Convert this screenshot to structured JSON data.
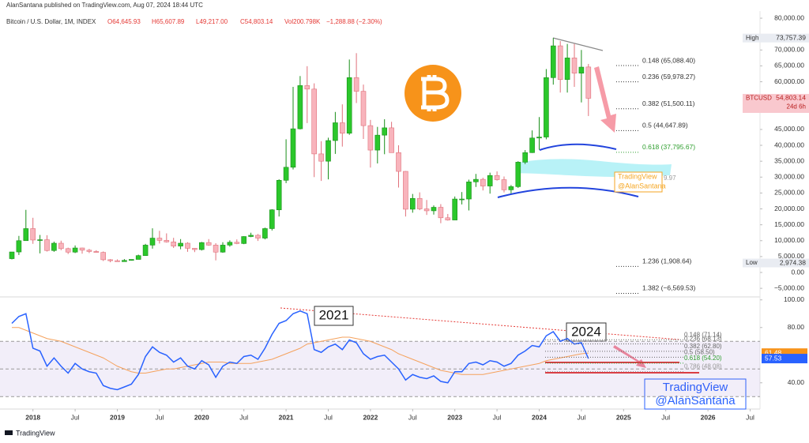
{
  "header": {
    "publisher": "AlanSantana published on TradingView.com, Aug 07, 2024 18:44 UTC",
    "footer": "TradingView"
  },
  "chart_data": [
    {
      "type": "candlestick",
      "title": "Bitcoin / U.S. Dollar, 1M, INDEX",
      "ohlc_legend": [
        "O64,645.93",
        "H65,607.89",
        "L49,217.00",
        "C54,803.14"
      ],
      "volume_label": "Vol200.798K",
      "change_label": "−1,288.88 (−2.30%)",
      "x": [
        "2017-10",
        "2017-11",
        "2017-12",
        "2018-01",
        "2018-02",
        "2018-03",
        "2018-04",
        "2018-05",
        "2018-06",
        "2018-07",
        "2018-08",
        "2018-09",
        "2018-10",
        "2018-11",
        "2018-12",
        "2019-01",
        "2019-02",
        "2019-03",
        "2019-04",
        "2019-05",
        "2019-06",
        "2019-07",
        "2019-08",
        "2019-09",
        "2019-10",
        "2019-11",
        "2019-12",
        "2020-01",
        "2020-02",
        "2020-03",
        "2020-04",
        "2020-05",
        "2020-06",
        "2020-07",
        "2020-08",
        "2020-09",
        "2020-10",
        "2020-11",
        "2020-12",
        "2021-01",
        "2021-02",
        "2021-03",
        "2021-04",
        "2021-05",
        "2021-06",
        "2021-07",
        "2021-08",
        "2021-09",
        "2021-10",
        "2021-11",
        "2021-12",
        "2022-01",
        "2022-02",
        "2022-03",
        "2022-04",
        "2022-05",
        "2022-06",
        "2022-07",
        "2022-08",
        "2022-09",
        "2022-10",
        "2022-11",
        "2022-12",
        "2023-01",
        "2023-02",
        "2023-03",
        "2023-04",
        "2023-05",
        "2023-06",
        "2023-07",
        "2023-08",
        "2023-09",
        "2023-10",
        "2023-11",
        "2023-12",
        "2024-01",
        "2024-02",
        "2024-03",
        "2024-04",
        "2024-05",
        "2024-06",
        "2024-07",
        "2024-08"
      ],
      "open": [
        4340,
        6450,
        10000,
        13800,
        10200,
        10300,
        6900,
        9200,
        7500,
        6400,
        7700,
        7000,
        6600,
        6300,
        4000,
        3700,
        3400,
        3800,
        4100,
        5300,
        8600,
        10800,
        10100,
        9600,
        8300,
        9200,
        7600,
        7200,
        9400,
        8600,
        6400,
        8600,
        9500,
        9100,
        11300,
        11700,
        10800,
        13800,
        19700,
        29000,
        33100,
        45200,
        58800,
        57700,
        37300,
        35000,
        41500,
        47100,
        43800,
        61300,
        57000,
        46200,
        38500,
        43200,
        45500,
        37700,
        31800,
        19900,
        23300,
        20000,
        19400,
        20500,
        17200,
        16500,
        23100,
        23100,
        28500,
        29300,
        27200,
        30500,
        29200,
        26000,
        27000,
        34700,
        37700,
        42300,
        42600,
        61300,
        71300,
        60700,
        67500,
        62700,
        64645.93
      ],
      "high": [
        6470,
        11500,
        19700,
        17200,
        11800,
        11700,
        9700,
        10000,
        7800,
        8500,
        7800,
        7400,
        7000,
        6600,
        4200,
        4100,
        4200,
        4100,
        5600,
        9000,
        13900,
        13100,
        12300,
        10900,
        10500,
        9500,
        7700,
        9600,
        10500,
        9200,
        9500,
        10100,
        10400,
        11400,
        12500,
        12100,
        14100,
        19900,
        29300,
        41900,
        58400,
        61800,
        64900,
        59500,
        41300,
        42400,
        50500,
        52900,
        67000,
        69000,
        59100,
        48000,
        45800,
        48200,
        47400,
        40000,
        31900,
        24700,
        25200,
        22800,
        21100,
        21500,
        18400,
        23900,
        25300,
        29200,
        31000,
        29800,
        31400,
        31800,
        30200,
        27500,
        35000,
        38500,
        44700,
        48900,
        64000,
        73757.39,
        72800,
        71900,
        71900,
        70000,
        65607.89
      ],
      "low": [
        4110,
        5500,
        10800,
        9000,
        6000,
        6600,
        6500,
        7000,
        5800,
        6100,
        5900,
        6100,
        6200,
        3600,
        3200,
        3400,
        3400,
        3700,
        4100,
        5300,
        7500,
        9100,
        9400,
        7700,
        7300,
        6500,
        6400,
        6900,
        8400,
        3800,
        6200,
        8100,
        8900,
        8900,
        11100,
        9900,
        10400,
        13200,
        17600,
        28100,
        32400,
        45000,
        47000,
        30000,
        28800,
        29300,
        37300,
        39600,
        43300,
        53300,
        42000,
        33000,
        34300,
        37200,
        37700,
        26700,
        17600,
        18800,
        19600,
        18100,
        18200,
        15500,
        16300,
        16500,
        21400,
        19500,
        26900,
        25800,
        24800,
        28900,
        25200,
        24900,
        26600,
        34100,
        37600,
        38600,
        41900,
        59100,
        56600,
        56600,
        58400,
        53500,
        49217
      ],
      "close": [
        6450,
        10000,
        13800,
        10200,
        10300,
        6900,
        9200,
        7500,
        6400,
        7700,
        7000,
        6600,
        6300,
        4000,
        3700,
        3400,
        3800,
        4100,
        5300,
        8600,
        10800,
        10100,
        9600,
        8300,
        9200,
        7600,
        7200,
        9400,
        8600,
        6400,
        8600,
        9500,
        9100,
        11300,
        11700,
        10800,
        13800,
        19700,
        29000,
        33100,
        45200,
        58800,
        57700,
        37300,
        35000,
        41500,
        47100,
        43800,
        61300,
        57000,
        46200,
        38500,
        43200,
        45500,
        37700,
        31800,
        19900,
        23300,
        20000,
        19400,
        20500,
        17200,
        16500,
        23100,
        23100,
        28500,
        29300,
        27200,
        30500,
        29200,
        26000,
        27000,
        34700,
        37700,
        42300,
        42600,
        61300,
        71300,
        60700,
        67500,
        62700,
        64600,
        54803.14
      ],
      "up_color": "#2bc72b",
      "down_color": "#f8b4bc",
      "ylim": [
        -7450,
        82000
      ],
      "yticks": [
        {
          "value": 80000,
          "label": "80,000.00"
        },
        {
          "value": 70000,
          "label": "70,000.00"
        },
        {
          "value": 65000,
          "label": "65,000.00"
        },
        {
          "value": 60000,
          "label": "60,000.00"
        },
        {
          "value": 45000,
          "label": "45,000.00"
        },
        {
          "value": 40000,
          "label": "40,000.00"
        },
        {
          "value": 35000,
          "label": "35,000.00"
        },
        {
          "value": 30000,
          "label": "30,000.00"
        },
        {
          "value": 25000,
          "label": "25,000.00"
        },
        {
          "value": 20000,
          "label": "20,000.00"
        },
        {
          "value": 15000,
          "label": "15,000.00"
        },
        {
          "value": 10000,
          "label": "10,000.00"
        },
        {
          "value": 5000,
          "label": "5,000.00"
        },
        {
          "value": 0,
          "label": "0.00"
        },
        {
          "value": -5000,
          "label": "−5,000.00"
        }
      ],
      "xticks": [
        {
          "value": "2018-01",
          "label": "2018"
        },
        {
          "value": "2018-07",
          "label": "Jul"
        },
        {
          "value": "2019-01",
          "label": "2019"
        },
        {
          "value": "2019-07",
          "label": "Jul"
        },
        {
          "value": "2020-01",
          "label": "2020"
        },
        {
          "value": "2020-07",
          "label": "Jul"
        },
        {
          "value": "2021-01",
          "label": "2021"
        },
        {
          "value": "2021-07",
          "label": "Jul"
        },
        {
          "value": "2022-01",
          "label": "2022"
        },
        {
          "value": "2022-07",
          "label": "Jul"
        },
        {
          "value": "2023-01",
          "label": "2023"
        },
        {
          "value": "2023-07",
          "label": "Jul"
        },
        {
          "value": "2024-01",
          "label": "2024"
        },
        {
          "value": "2024-07",
          "label": "Jul"
        },
        {
          "value": "2025-01",
          "label": "2025"
        },
        {
          "value": "2025-07",
          "label": "Jul"
        },
        {
          "value": "2026-01",
          "label": "2026"
        },
        {
          "value": "2026-07",
          "label": "Jul"
        }
      ],
      "fib_levels": [
        {
          "label": "0.148 (65,088.40)",
          "value": 65088.4,
          "color": "#333333"
        },
        {
          "label": "0.236 (59,978.27)",
          "value": 59978.27,
          "color": "#333333"
        },
        {
          "label": "0.382 (51,500.11)",
          "value": 51500.11,
          "color": "#333333"
        },
        {
          "label": "0.5 (44,647.89)",
          "value": 44647.89,
          "color": "#333333"
        },
        {
          "label": "0.618 (37,795.67)",
          "value": 37795.67,
          "color": "#2e9e2e"
        },
        {
          "label": "1.236 (1,908.64)",
          "value": 1908.64,
          "color": "#333333"
        },
        {
          "label": "1.382 (−6,569.53)",
          "value": -6569.53,
          "color": "#333333"
        }
      ],
      "markers": [
        {
          "name": "High",
          "value": 73757.39,
          "label": "73,757.39"
        },
        {
          "name": "BTCUSD",
          "value": 54803.14,
          "label": "54,803.14",
          "countdown": "24d 6h"
        },
        {
          "name": "Low",
          "value": 2974.38,
          "label": "2,974.38"
        }
      ],
      "annotations": [
        "TradingView",
        "@AlanSantana",
        "9.97"
      ]
    },
    {
      "type": "line",
      "x": [
        "2017-10",
        "2017-11",
        "2017-12",
        "2018-01",
        "2018-02",
        "2018-03",
        "2018-04",
        "2018-05",
        "2018-06",
        "2018-07",
        "2018-08",
        "2018-09",
        "2018-10",
        "2018-11",
        "2018-12",
        "2019-01",
        "2019-02",
        "2019-03",
        "2019-04",
        "2019-05",
        "2019-06",
        "2019-07",
        "2019-08",
        "2019-09",
        "2019-10",
        "2019-11",
        "2019-12",
        "2020-01",
        "2020-02",
        "2020-03",
        "2020-04",
        "2020-05",
        "2020-06",
        "2020-07",
        "2020-08",
        "2020-09",
        "2020-10",
        "2020-11",
        "2020-12",
        "2021-01",
        "2021-02",
        "2021-03",
        "2021-04",
        "2021-05",
        "2021-06",
        "2021-07",
        "2021-08",
        "2021-09",
        "2021-10",
        "2021-11",
        "2021-12",
        "2022-01",
        "2022-02",
        "2022-03",
        "2022-04",
        "2022-05",
        "2022-06",
        "2022-07",
        "2022-08",
        "2022-09",
        "2022-10",
        "2022-11",
        "2022-12",
        "2023-01",
        "2023-02",
        "2023-03",
        "2023-04",
        "2023-05",
        "2023-06",
        "2023-07",
        "2023-08",
        "2023-09",
        "2023-10",
        "2023-11",
        "2023-12",
        "2024-01",
        "2024-02",
        "2024-03",
        "2024-04",
        "2024-05",
        "2024-06",
        "2024-07",
        "2024-08"
      ],
      "series": [
        {
          "color": "#f5a25d",
          "values": [
            80,
            80,
            78,
            76,
            74,
            72,
            71,
            70,
            68,
            66,
            64,
            62,
            60,
            58,
            55,
            52,
            50,
            48,
            47,
            47,
            48,
            49,
            50,
            50,
            51,
            52,
            53,
            54,
            55,
            55,
            55,
            54,
            54,
            54,
            54,
            55,
            56,
            57,
            59,
            61,
            63,
            65,
            68,
            69,
            70,
            71,
            72,
            73,
            73,
            72,
            71,
            70,
            68,
            66,
            64,
            61,
            59,
            57,
            55,
            53,
            51,
            49,
            48,
            47,
            46,
            46,
            46,
            46,
            47,
            48,
            49,
            50,
            51,
            52,
            53,
            54,
            56,
            57,
            58,
            59,
            60,
            61,
            61.48
          ]
        },
        {
          "color": "#2962ff",
          "values": [
            83,
            88,
            90,
            65,
            63,
            52,
            58,
            52,
            47,
            54,
            50,
            48,
            47,
            38,
            36,
            35,
            37,
            39,
            46,
            59,
            66,
            62,
            60,
            55,
            58,
            52,
            50,
            56,
            53,
            44,
            52,
            55,
            54,
            59,
            60,
            57,
            65,
            75,
            83,
            85,
            90,
            92,
            90,
            64,
            62,
            66,
            68,
            64,
            71,
            69,
            61,
            57,
            59,
            60,
            55,
            50,
            42,
            46,
            44,
            43,
            45,
            41,
            40,
            48,
            48,
            54,
            55,
            53,
            56,
            55,
            52,
            54,
            60,
            63,
            67,
            66,
            74,
            77,
            70,
            72,
            68,
            69,
            57.53
          ]
        }
      ],
      "ylim": [
        21,
        101
      ],
      "yticks": [
        {
          "value": 100,
          "label": "100.00"
        },
        {
          "value": 80,
          "label": "80.00"
        },
        {
          "value": 40,
          "label": "40.00"
        }
      ],
      "band": [
        30,
        70
      ],
      "midline": 50,
      "fib_levels": [
        {
          "label": "0.148 (71.14)",
          "value": 71.14,
          "color": "#666666"
        },
        {
          "label": "0.236 (68.13)",
          "value": 68.13,
          "color": "#666666"
        },
        {
          "label": "0.382 (62.80)",
          "value": 62.8,
          "color": "#666666"
        },
        {
          "label": "0.5 (58.50)",
          "value": 58.5,
          "color": "#666666"
        },
        {
          "label": "0.618 (54.20)",
          "value": 54.2,
          "color": "#2e9e2e"
        },
        {
          "label": "0.786 (48.08)",
          "value": 48.08,
          "color": "#999999"
        }
      ],
      "markers": [
        {
          "value": 61.48,
          "color": "#f7931a"
        },
        {
          "value": 57.53,
          "color": "#2962ff"
        }
      ],
      "annotations": [
        "2021",
        "2024",
        "TradingView",
        "@AlanSantana"
      ]
    }
  ]
}
